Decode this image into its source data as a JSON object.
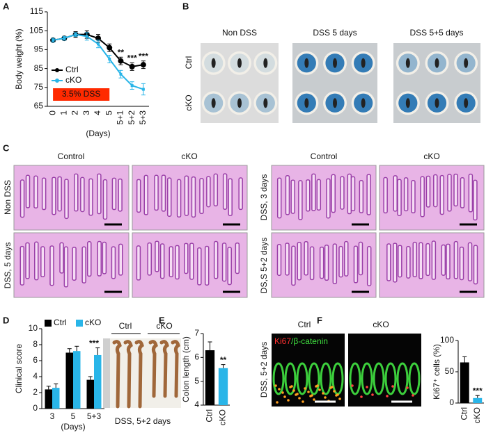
{
  "panel_labels": [
    "A",
    "B",
    "C",
    "D",
    "E",
    "F"
  ],
  "chart_data": [
    {
      "type": "line",
      "y_label": "Body weight (%)",
      "x_label": "(Days)",
      "categories": [
        "0",
        "1",
        "2",
        "3",
        "4",
        "5",
        "5+1",
        "5+2",
        "5+3"
      ],
      "series": [
        {
          "name": "Ctrl",
          "color": "#000000",
          "values": [
            100,
            101,
            103,
            103,
            101,
            96,
            89,
            86,
            87
          ],
          "errors": [
            1,
            1,
            1.5,
            2,
            2,
            2,
            2,
            2,
            2
          ]
        },
        {
          "name": "cKO",
          "color": "#29b5e8",
          "values": [
            100,
            101,
            103,
            102,
            98,
            90,
            82,
            76,
            74
          ],
          "errors": [
            1,
            1,
            1,
            2,
            2,
            2,
            2,
            2,
            3
          ]
        }
      ],
      "ylim": [
        65,
        115
      ],
      "yticks": [
        65,
        75,
        85,
        95,
        105,
        115
      ],
      "legend": "lower left",
      "shaded_region": {
        "label": "3.5% DSS",
        "from": "0",
        "to": "5",
        "color": "#ff2a00"
      },
      "annotations": [
        {
          "text": "**",
          "category": "5+1"
        },
        {
          "text": "***",
          "category": "5+2"
        },
        {
          "text": "***",
          "category": "5+3"
        }
      ]
    },
    {
      "type": "bar",
      "y_label": "Clinical score",
      "x_label": "(Days)",
      "categories": [
        "3",
        "5",
        "5+3"
      ],
      "series": [
        {
          "name": "Ctrl",
          "color": "#000000",
          "values": [
            2.4,
            7.0,
            3.6
          ],
          "errors": [
            0.4,
            0.5,
            0.4
          ]
        },
        {
          "name": "cKO",
          "color": "#29b5e8",
          "values": [
            2.6,
            7.2,
            6.7
          ],
          "errors": [
            0.5,
            0.6,
            0.9
          ]
        }
      ],
      "ylim": [
        0,
        10
      ],
      "yticks": [
        0,
        2,
        4,
        6,
        8,
        10
      ],
      "legend": "top",
      "annotations": [
        {
          "text": "***",
          "category": "5+3"
        }
      ]
    },
    {
      "type": "bar",
      "y_label": "Colon length (cm)",
      "categories": [
        "Ctrl",
        "cKO"
      ],
      "values": [
        6.3,
        5.55
      ],
      "errors": [
        0.35,
        0.15
      ],
      "colors": [
        "#000000",
        "#29b5e8"
      ],
      "ylim": [
        4,
        7
      ],
      "yticks": [
        4,
        5,
        6,
        7
      ],
      "annotations": [
        {
          "text": "**",
          "category": "cKO"
        }
      ]
    },
    {
      "type": "bar",
      "y_label": "Ki67⁺ cells (%)",
      "categories": [
        "Ctrl",
        "cKO"
      ],
      "values": [
        65,
        8
      ],
      "errors": [
        9,
        4
      ],
      "colors": [
        "#000000",
        "#29b5e8"
      ],
      "ylim": [
        0,
        100
      ],
      "yticks": [
        0,
        50,
        100
      ],
      "annotations": [
        {
          "text": "***",
          "category": "cKO"
        }
      ]
    }
  ],
  "panel_b": {
    "columns": [
      "Non DSS",
      "DSS 5 days",
      "DSS 5+5 days"
    ],
    "rows": [
      "Ctrl",
      "cKO"
    ]
  },
  "panel_c": {
    "left": {
      "columns": [
        "Control",
        "cKO"
      ],
      "rows": [
        "Non DSS",
        "DSS, 5 days"
      ]
    },
    "right": {
      "columns": [
        "Control",
        "cKO"
      ],
      "rows": [
        "DSS, 3 days",
        "DS,S 5+2 days"
      ]
    }
  },
  "panel_e": {
    "groups": [
      "Ctrl",
      "cKO"
    ],
    "caption": "DSS, 5+2 days"
  },
  "panel_f": {
    "columns": [
      "Ctrl",
      "cKO"
    ],
    "row": "DSS, 5+2 days",
    "stain": [
      "Ki67",
      "/β-catenin"
    ]
  }
}
